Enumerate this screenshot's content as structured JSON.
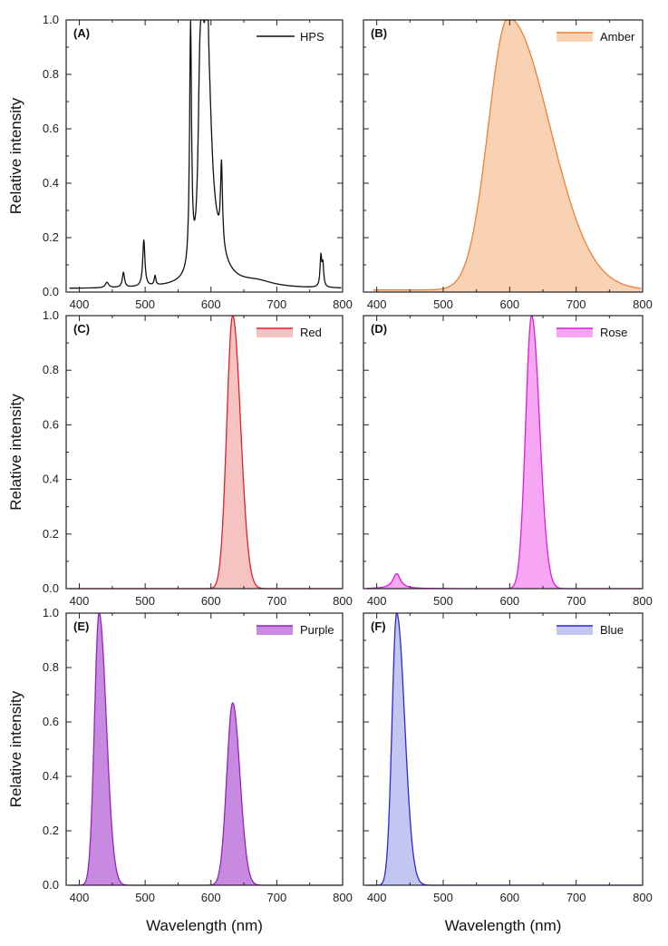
{
  "chart_data": [
    {
      "type": "area",
      "panel_label": "(A)",
      "series": [
        {
          "name": "HPS",
          "color": "#111111",
          "fill": "none"
        }
      ],
      "peaks": [
        [
          442,
          0.02,
          3
        ],
        [
          467,
          0.055,
          2
        ],
        [
          498,
          0.17,
          2
        ],
        [
          515,
          0.035,
          1.5
        ],
        [
          569,
          0.89,
          1.8
        ],
        [
          583,
          0.55,
          3
        ],
        [
          587,
          0.85,
          2
        ],
        [
          593,
          0.98,
          2.2
        ],
        [
          597,
          0.45,
          6
        ],
        [
          616,
          0.3,
          1.8
        ],
        [
          605,
          0.15,
          18
        ],
        [
          670,
          0.02,
          30
        ],
        [
          767,
          0.11,
          1.5
        ],
        [
          770,
          0.08,
          1.5
        ]
      ],
      "baseline": 0.012,
      "xlim": [
        380,
        800
      ],
      "ylim": [
        0,
        1.0
      ],
      "xticks": [
        400,
        500,
        600,
        700,
        800
      ],
      "yticks": [
        0.0,
        0.2,
        0.4,
        0.6,
        0.8,
        1.0
      ],
      "ylabel": "Relative intensity",
      "xlabel": "",
      "legend": "top-right"
    },
    {
      "type": "area",
      "panel_label": "(B)",
      "series": [
        {
          "name": "Amber",
          "color": "#e8823a",
          "fill": "#f9d2b4"
        }
      ],
      "peaks": [
        [
          598,
          1.0,
          [
            30,
            62
          ]
        ]
      ],
      "baseline": 0.008,
      "xlim": [
        380,
        800
      ],
      "ylim": [
        0,
        1.0
      ],
      "xticks": [
        400,
        500,
        600,
        700,
        800
      ],
      "yticks": [
        0.0,
        0.2,
        0.4,
        0.6,
        0.8,
        1.0
      ],
      "ylabel": "",
      "xlabel": "",
      "legend": "top-right"
    },
    {
      "type": "area",
      "panel_label": "(C)",
      "series": [
        {
          "name": "Red",
          "color": "#d9232a",
          "fill": "#f7c2c2"
        }
      ],
      "peaks": [
        [
          633,
          1.0,
          [
            9,
            12
          ]
        ]
      ],
      "baseline": 0.0,
      "xlim": [
        380,
        800
      ],
      "ylim": [
        0,
        1.0
      ],
      "xticks": [
        400,
        500,
        600,
        700,
        800
      ],
      "yticks": [
        0.0,
        0.2,
        0.4,
        0.6,
        0.8,
        1.0
      ],
      "ylabel": "Relative intensity",
      "xlabel": "",
      "legend": "top-right"
    },
    {
      "type": "area",
      "panel_label": "(D)",
      "series": [
        {
          "name": "Rose",
          "color": "#d81fd8",
          "fill": "#f6a6f2"
        }
      ],
      "peaks": [
        [
          430,
          0.055,
          7
        ],
        [
          633,
          1.0,
          [
            9,
            12
          ]
        ]
      ],
      "baseline": 0.0,
      "xlim": [
        380,
        800
      ],
      "ylim": [
        0,
        1.0
      ],
      "xticks": [
        400,
        500,
        600,
        700,
        800
      ],
      "yticks": [
        0.0,
        0.2,
        0.4,
        0.6,
        0.8,
        1.0
      ],
      "ylabel": "",
      "xlabel": "",
      "legend": "top-right"
    },
    {
      "type": "area",
      "panel_label": "(E)",
      "series": [
        {
          "name": "Purple",
          "color": "#9226b8",
          "fill": "#c889e0"
        }
      ],
      "peaks": [
        [
          430,
          1.0,
          [
            7,
            11
          ]
        ],
        [
          633,
          0.67,
          [
            9,
            11
          ]
        ]
      ],
      "baseline": 0.0,
      "xlim": [
        380,
        800
      ],
      "ylim": [
        0,
        1.0
      ],
      "xticks": [
        400,
        500,
        600,
        700,
        800
      ],
      "yticks": [
        0.0,
        0.2,
        0.4,
        0.6,
        0.8,
        1.0
      ],
      "ylabel": "Relative intensity",
      "xlabel": "Wavelength (nm)",
      "legend": "top-right"
    },
    {
      "type": "area",
      "panel_label": "(F)",
      "series": [
        {
          "name": "Blue",
          "color": "#2a2ad0",
          "fill": "#c4c6f2"
        }
      ],
      "peaks": [
        [
          430,
          1.0,
          [
            7,
            12
          ]
        ]
      ],
      "baseline": 0.0,
      "xlim": [
        380,
        800
      ],
      "ylim": [
        0,
        1.0
      ],
      "xticks": [
        400,
        500,
        600,
        700,
        800
      ],
      "yticks": [
        0.0,
        0.2,
        0.4,
        0.6,
        0.8,
        1.0
      ],
      "ylabel": "",
      "xlabel": "Wavelength (nm)",
      "legend": "top-right"
    }
  ]
}
